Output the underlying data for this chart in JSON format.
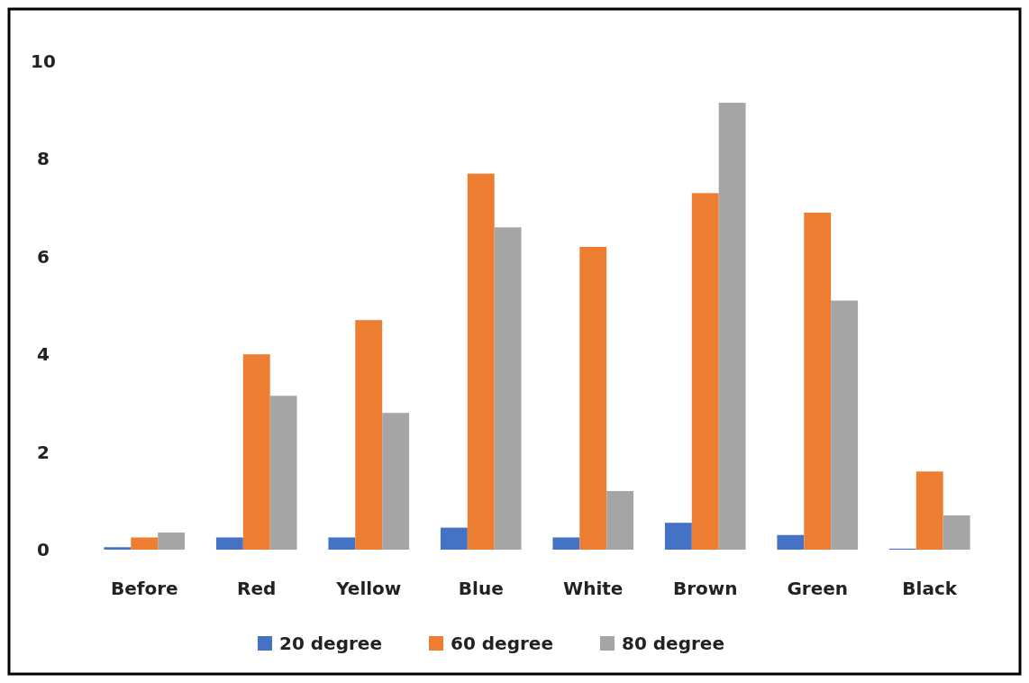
{
  "chart_data": {
    "type": "bar",
    "categories": [
      "Before",
      "Red",
      "Yellow",
      "Blue",
      "White",
      "Brown",
      "Green",
      "Black"
    ],
    "series": [
      {
        "name": "20 degree",
        "color": "#4472c4",
        "values": [
          0.05,
          0.25,
          0.25,
          0.45,
          0.25,
          0.55,
          0.3,
          0.02
        ]
      },
      {
        "name": "60 degree",
        "color": "#ed7d31",
        "values": [
          0.25,
          4.0,
          4.7,
          7.7,
          6.2,
          7.3,
          6.9,
          1.6
        ]
      },
      {
        "name": "80 degree",
        "color": "#a5a5a5",
        "values": [
          0.35,
          3.15,
          2.8,
          6.6,
          1.2,
          9.15,
          5.1,
          0.7
        ]
      }
    ],
    "ylim": [
      0,
      10
    ],
    "yticks": [
      0,
      2,
      4,
      6,
      8,
      10
    ],
    "grid": false,
    "legend": "bottom"
  }
}
